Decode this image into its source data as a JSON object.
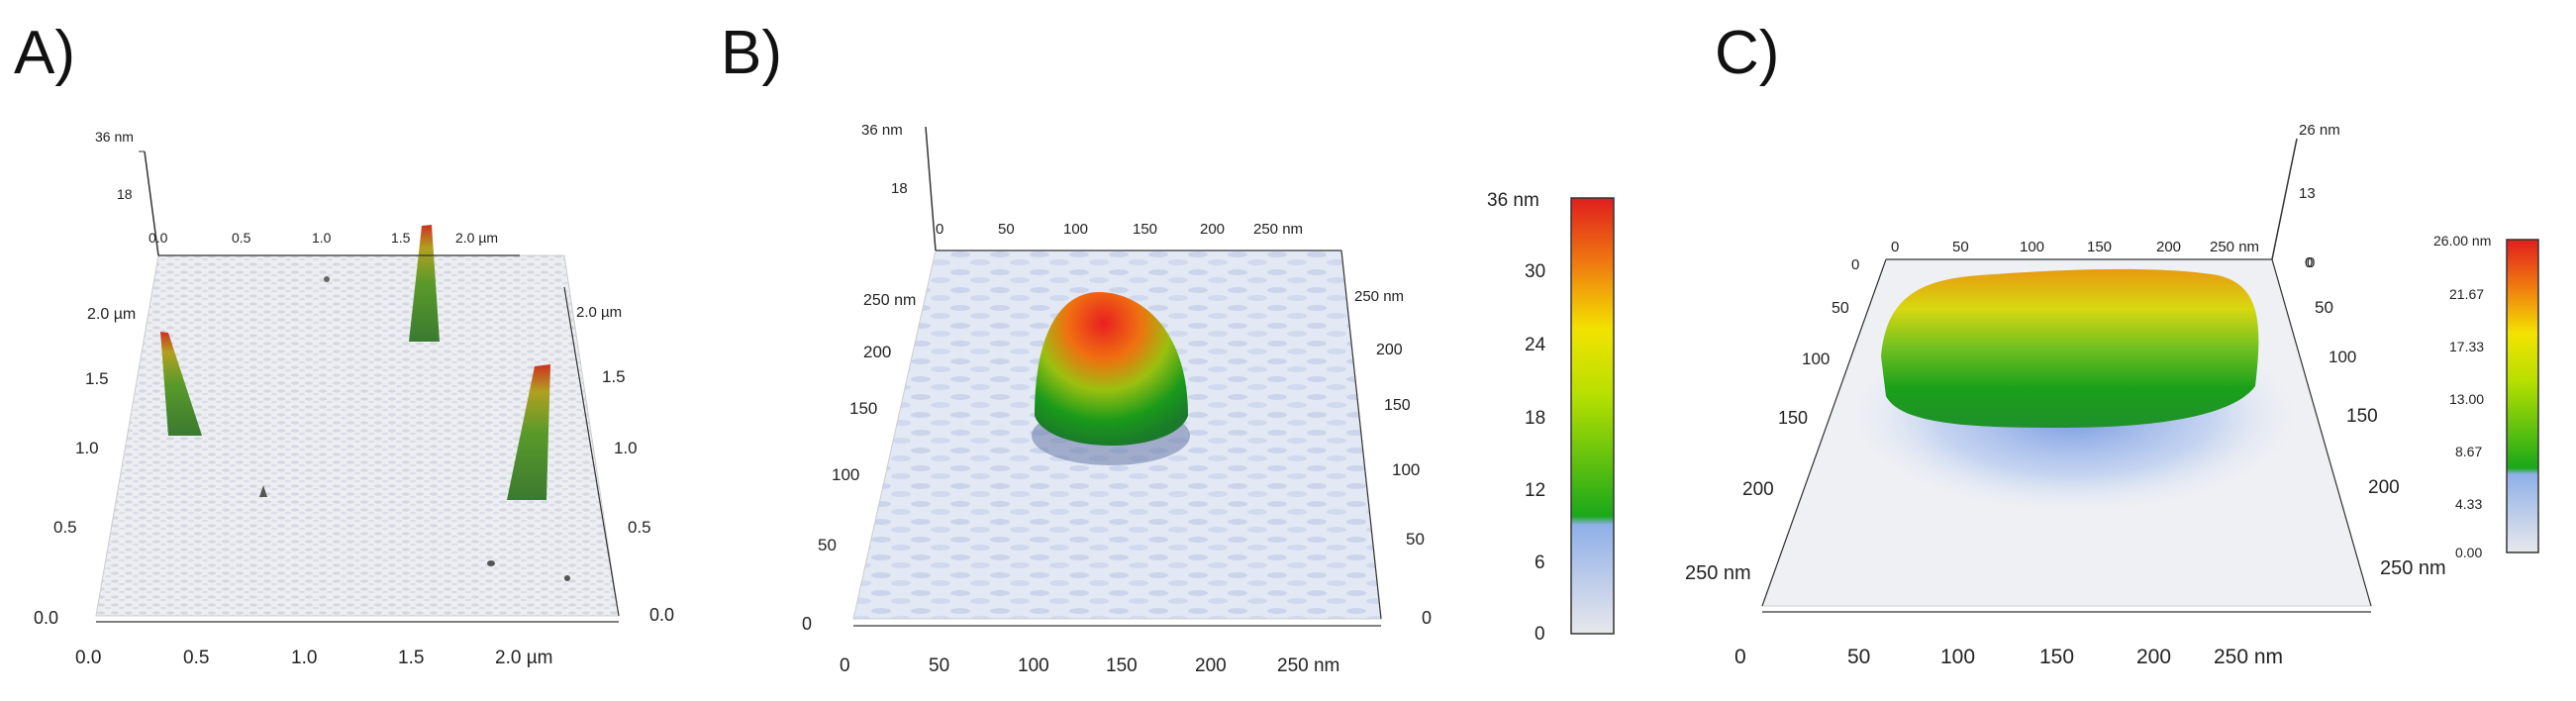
{
  "panels": [
    {
      "letter": "A)",
      "z_axis": {
        "ticks": [
          "36 nm",
          "18"
        ]
      },
      "top_axis": {
        "ticks": [
          "0.0",
          "0.5",
          "1.0",
          "1.5",
          "2.0 µm"
        ]
      },
      "left_axis": {
        "ticks": [
          "2.0 µm",
          "1.5",
          "1.0",
          "0.5",
          "0.0"
        ]
      },
      "right_axis": {
        "ticks": [
          "2.0 µm",
          "1.5",
          "1.0",
          "0.5",
          "0.0"
        ]
      },
      "bottom_axis": {
        "ticks": [
          "0.0",
          "0.5",
          "1.0",
          "1.5",
          "2.0 µm"
        ]
      }
    },
    {
      "letter": "B)",
      "z_axis": {
        "ticks": [
          "36 nm",
          "18"
        ]
      },
      "top_axis": {
        "ticks": [
          "0",
          "50",
          "100",
          "150",
          "200",
          "250 nm"
        ]
      },
      "left_axis": {
        "ticks": [
          "250 nm",
          "200",
          "150",
          "100",
          "50",
          "0"
        ]
      },
      "right_axis": {
        "ticks": [
          "250 nm",
          "200",
          "150",
          "100",
          "50",
          "0"
        ]
      },
      "bottom_axis": {
        "ticks": [
          "0",
          "50",
          "100",
          "150",
          "200",
          "250 nm"
        ]
      },
      "colorbar": {
        "ticks": [
          "36 nm",
          "30",
          "24",
          "18",
          "12",
          "6",
          "0"
        ]
      }
    },
    {
      "letter": "C)",
      "z_axis": {
        "ticks": [
          "26 nm",
          "13",
          "0"
        ]
      },
      "top_axis": {
        "ticks": [
          "0",
          "50",
          "100",
          "150",
          "200",
          "250 nm"
        ]
      },
      "left_axis": {
        "ticks": [
          "0",
          "50",
          "100",
          "150",
          "200",
          "250 nm"
        ]
      },
      "right_axis": {
        "ticks": [
          "0",
          "50",
          "100",
          "150",
          "200",
          "250 nm"
        ]
      },
      "bottom_axis": {
        "ticks": [
          "0",
          "50",
          "100",
          "150",
          "200",
          "250 nm"
        ]
      },
      "colorbar": {
        "ticks": [
          "26.00 nm",
          "21.67",
          "17.33",
          "13.00",
          "8.67",
          "4.33",
          "0.00"
        ]
      }
    }
  ],
  "colors": {
    "surface": "#e6e8ef",
    "low": "#8fb0e8",
    "mid_green": "#1aa81a",
    "yellow": "#f2e200",
    "orange": "#f07a10",
    "red": "#e01e1e"
  }
}
